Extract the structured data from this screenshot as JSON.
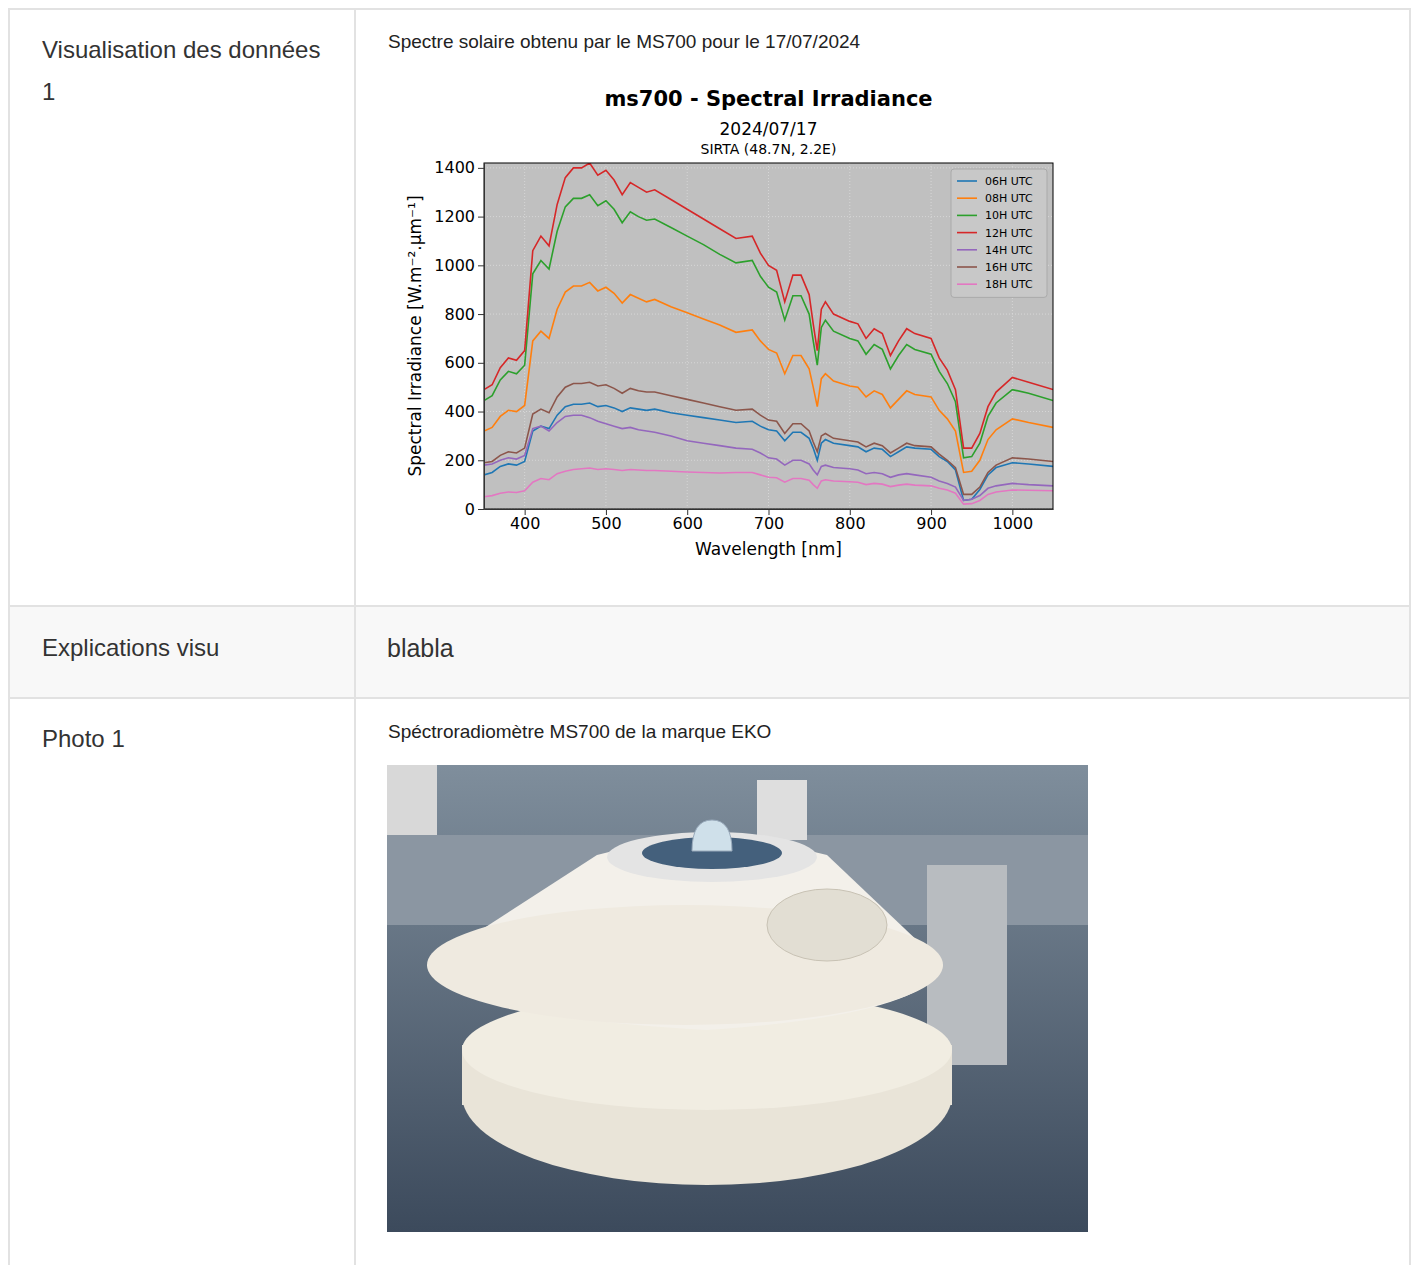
{
  "table": {
    "rows": [
      {
        "label": "Visualisation des données 1",
        "caption": "Spectre solaire obtenu par le MS700 pour le 17/07/2024"
      },
      {
        "label": "Explications visu",
        "text": "blabla"
      },
      {
        "label": "Photo 1",
        "caption": "Spéctroradiomètre MS700 de la marque EKO"
      }
    ]
  },
  "chart_data": {
    "type": "line",
    "title": "ms700 - Spectral Irradiance",
    "subtitle": "2024/07/17",
    "annotations": [
      "SIRTA (48.7N, 2.2E)"
    ],
    "x_label": "Wavelength [nm]",
    "y_label": "Spectral Irradiance [W.m⁻².μm⁻¹]",
    "xlim": [
      350,
      1050
    ],
    "xticks": [
      400,
      500,
      600,
      700,
      800,
      900,
      1000
    ],
    "ylim": [
      0,
      1420
    ],
    "yticks": [
      0,
      200,
      400,
      600,
      800,
      1000,
      1200,
      1400
    ],
    "grid": true,
    "legend": "upper right",
    "x": [
      350,
      360,
      370,
      380,
      390,
      400,
      410,
      420,
      430,
      440,
      450,
      460,
      470,
      480,
      490,
      500,
      510,
      520,
      530,
      540,
      550,
      560,
      580,
      600,
      620,
      640,
      660,
      680,
      690,
      700,
      710,
      720,
      730,
      740,
      750,
      755,
      760,
      765,
      770,
      780,
      800,
      810,
      820,
      830,
      840,
      850,
      860,
      870,
      880,
      900,
      910,
      920,
      930,
      940,
      950,
      960,
      970,
      980,
      1000,
      1020,
      1050
    ],
    "series": [
      {
        "name": "06H UTC",
        "color": "#1f77b4",
        "values": [
          140,
          150,
          175,
          185,
          180,
          195,
          320,
          340,
          330,
          385,
          420,
          430,
          430,
          435,
          420,
          425,
          415,
          400,
          415,
          410,
          405,
          410,
          395,
          385,
          375,
          365,
          355,
          360,
          340,
          325,
          320,
          280,
          315,
          315,
          290,
          250,
          200,
          270,
          285,
          270,
          260,
          255,
          235,
          250,
          245,
          215,
          235,
          255,
          250,
          245,
          215,
          195,
          160,
          35,
          40,
          80,
          140,
          170,
          190,
          185,
          175
        ]
      },
      {
        "name": "08H UTC",
        "color": "#ff7f0e",
        "values": [
          320,
          335,
          380,
          405,
          400,
          425,
          690,
          730,
          700,
          820,
          890,
          915,
          915,
          930,
          895,
          910,
          885,
          845,
          880,
          865,
          850,
          860,
          830,
          805,
          780,
          755,
          725,
          735,
          690,
          655,
          640,
          555,
          630,
          630,
          575,
          500,
          420,
          535,
          555,
          525,
          505,
          500,
          460,
          485,
          470,
          415,
          450,
          485,
          470,
          460,
          405,
          370,
          320,
          150,
          155,
          200,
          285,
          325,
          370,
          355,
          335
        ]
      },
      {
        "name": "10H UTC",
        "color": "#2ca02c",
        "values": [
          445,
          465,
          530,
          565,
          555,
          590,
          965,
          1020,
          985,
          1140,
          1240,
          1275,
          1275,
          1290,
          1245,
          1265,
          1230,
          1175,
          1220,
          1200,
          1185,
          1190,
          1155,
          1120,
          1085,
          1045,
          1010,
          1020,
          955,
          910,
          890,
          775,
          875,
          875,
          800,
          690,
          590,
          745,
          775,
          730,
          700,
          690,
          635,
          675,
          655,
          575,
          630,
          675,
          655,
          635,
          565,
          515,
          440,
          210,
          215,
          270,
          380,
          435,
          490,
          475,
          445
        ]
      },
      {
        "name": "12H UTC",
        "color": "#d62728",
        "values": [
          490,
          510,
          580,
          620,
          610,
          650,
          1060,
          1120,
          1080,
          1250,
          1360,
          1400,
          1400,
          1420,
          1370,
          1390,
          1350,
          1290,
          1340,
          1320,
          1300,
          1310,
          1270,
          1230,
          1190,
          1150,
          1110,
          1120,
          1050,
          1000,
          980,
          850,
          960,
          960,
          880,
          760,
          650,
          820,
          850,
          800,
          770,
          760,
          700,
          740,
          720,
          630,
          690,
          740,
          720,
          700,
          620,
          570,
          490,
          250,
          250,
          310,
          420,
          480,
          540,
          520,
          490
        ]
      },
      {
        "name": "14H UTC",
        "color": "#9467bd",
        "values": [
          180,
          185,
          200,
          210,
          205,
          220,
          330,
          340,
          320,
          355,
          380,
          385,
          385,
          375,
          360,
          350,
          340,
          330,
          335,
          325,
          320,
          315,
          300,
          280,
          270,
          260,
          250,
          245,
          230,
          210,
          205,
          180,
          200,
          200,
          185,
          160,
          140,
          175,
          180,
          170,
          165,
          160,
          145,
          150,
          145,
          130,
          140,
          145,
          140,
          130,
          115,
          105,
          90,
          35,
          40,
          55,
          85,
          95,
          105,
          100,
          95
        ]
      },
      {
        "name": "16H UTC",
        "color": "#8c564b",
        "values": [
          190,
          195,
          220,
          235,
          230,
          250,
          390,
          410,
          395,
          460,
          500,
          515,
          515,
          520,
          505,
          510,
          495,
          475,
          495,
          485,
          480,
          480,
          465,
          450,
          435,
          420,
          405,
          410,
          385,
          365,
          360,
          310,
          350,
          350,
          320,
          275,
          235,
          300,
          310,
          290,
          280,
          275,
          255,
          270,
          260,
          230,
          250,
          270,
          260,
          255,
          225,
          200,
          170,
          60,
          60,
          90,
          150,
          180,
          210,
          205,
          195
        ]
      },
      {
        "name": "18H UTC",
        "color": "#e377c2",
        "values": [
          50,
          55,
          65,
          70,
          68,
          75,
          110,
          125,
          120,
          145,
          155,
          162,
          165,
          168,
          162,
          165,
          162,
          158,
          162,
          160,
          158,
          158,
          155,
          152,
          150,
          148,
          150,
          150,
          140,
          130,
          128,
          110,
          125,
          125,
          118,
          100,
          85,
          115,
          120,
          115,
          112,
          110,
          100,
          105,
          102,
          92,
          98,
          102,
          98,
          95,
          85,
          78,
          65,
          20,
          22,
          35,
          60,
          70,
          78,
          77,
          75
        ]
      }
    ]
  }
}
